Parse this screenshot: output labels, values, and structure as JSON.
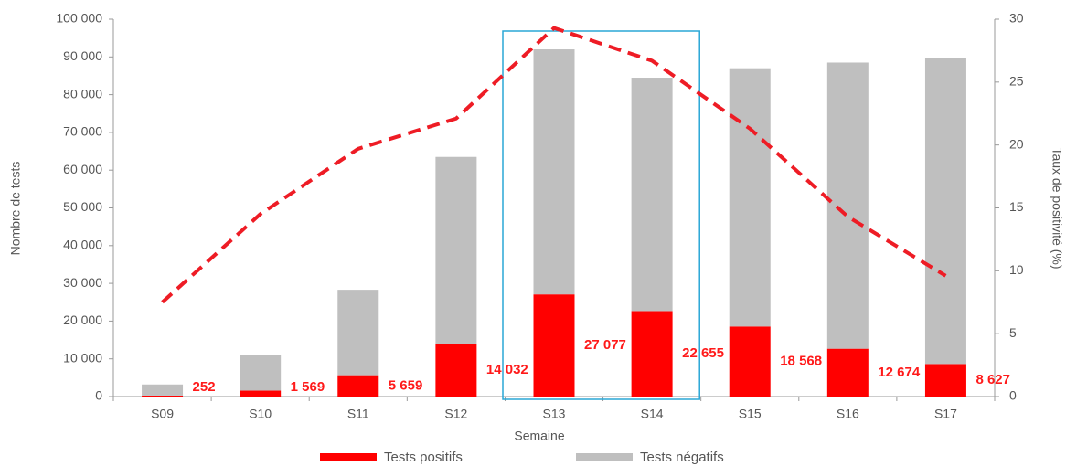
{
  "chart_data": {
    "type": "stacked-bar-line",
    "xlabel": "Semaine",
    "ylabel": "Nombre de tests",
    "y2label": "Taux de positivité (%)",
    "categories": [
      "S09",
      "S10",
      "S11",
      "S12",
      "S13",
      "S14",
      "S15",
      "S16",
      "S17"
    ],
    "series": [
      {
        "name": "Tests positifs",
        "color": "#ff0000",
        "type": "bar",
        "values": [
          252,
          1569,
          5659,
          14032,
          27077,
          22655,
          18568,
          12674,
          8627
        ],
        "value_labels": [
          "252",
          "1 569",
          "5 659",
          "14 032",
          "27 077",
          "22 655",
          "18 568",
          "12 674",
          "8 627"
        ]
      },
      {
        "name": "Tests négatifs",
        "color": "#bfbfbf",
        "type": "bar",
        "values": [
          2950,
          9431,
          22641,
          49468,
          64923,
          61845,
          68432,
          75826,
          81173
        ]
      },
      {
        "color": "#ee1c25",
        "type": "line",
        "axis": "y2",
        "values": [
          7.5,
          14.5,
          19.7,
          22.1,
          29.3,
          26.7,
          21.3,
          14.3,
          9.6
        ]
      }
    ],
    "ylim": [
      0,
      100000
    ],
    "yticks": [
      0,
      {
        "value": 10000,
        "label": "10 000"
      },
      {
        "value": 20000,
        "label": "20 000"
      },
      {
        "value": 30000,
        "label": "30 000"
      },
      {
        "value": 40000,
        "label": "40 000"
      },
      {
        "value": 50000,
        "label": "50 000"
      },
      {
        "value": 60000,
        "label": "60 000"
      },
      {
        "value": 70000,
        "label": "70 000"
      },
      {
        "value": 80000,
        "label": "80 000"
      },
      {
        "value": 90000,
        "label": "90 000"
      },
      {
        "value": 100000,
        "label": "100 000"
      }
    ],
    "y2lim": [
      0,
      30
    ],
    "y2ticks": [
      0,
      5,
      10,
      15,
      20,
      25,
      30
    ],
    "grid": false
  }
}
